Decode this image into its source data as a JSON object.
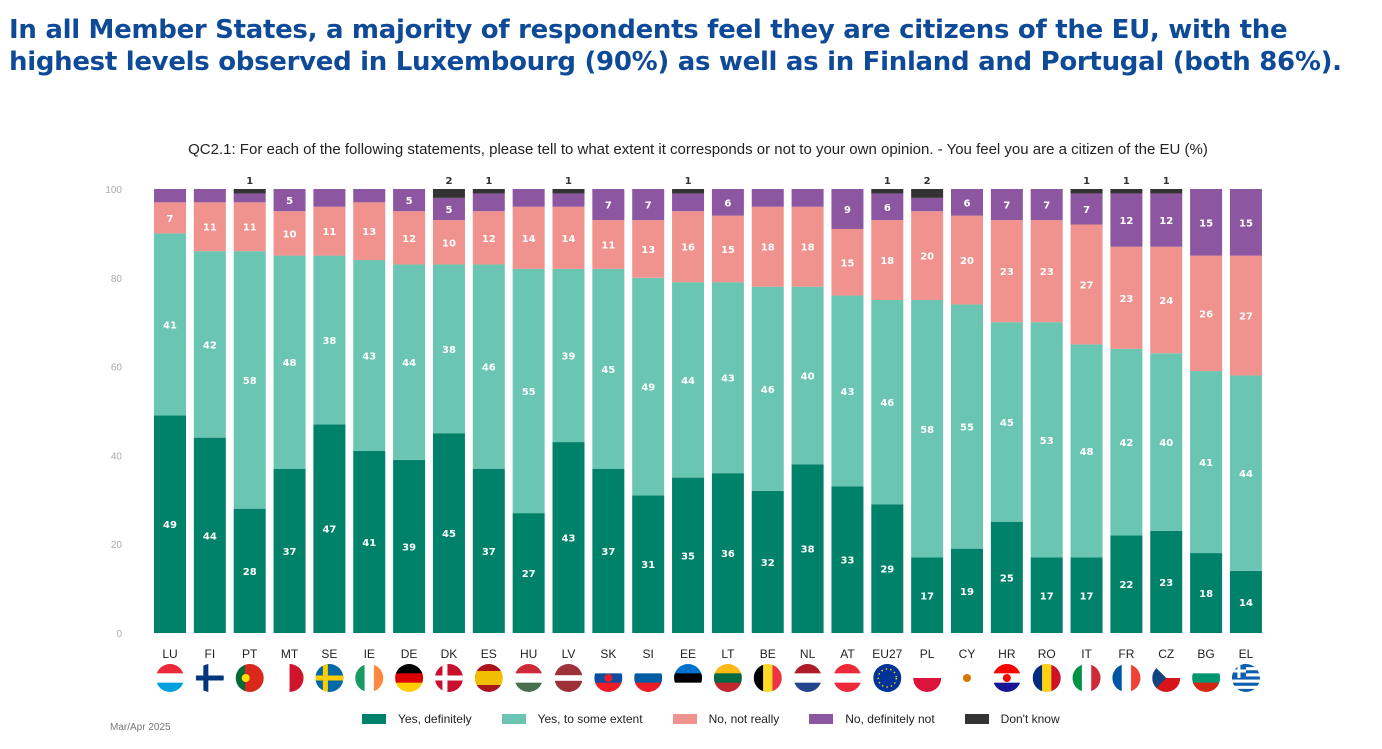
{
  "headline": "In all Member States, a majority of respondents feel they are citizens of the EU, with the highest levels observed in Luxembourg (90%) as well as in Finland and Portugal (both 86%).",
  "footer_date": "Mar/Apr 2025",
  "chart_data": {
    "type": "bar",
    "stacked": true,
    "title": "QC2.1: For each of the following statements, please tell to what extent it corresponds or not to your own opinion. - You feel you are a citizen of the EU (%)",
    "xlabel": "",
    "ylabel": "",
    "ylim": [
      0,
      100
    ],
    "yticks": [
      0,
      20,
      40,
      60,
      80,
      100
    ],
    "grid": false,
    "legend_position": "bottom",
    "categories": [
      "LU",
      "FI",
      "PT",
      "MT",
      "SE",
      "IE",
      "DE",
      "DK",
      "ES",
      "HU",
      "LV",
      "SK",
      "SI",
      "EE",
      "LT",
      "BE",
      "NL",
      "AT",
      "EU27",
      "PL",
      "CY",
      "HR",
      "RO",
      "IT",
      "FR",
      "CZ",
      "BG",
      "EL"
    ],
    "flags": [
      "flag-luxembourg",
      "flag-finland",
      "flag-portugal",
      "flag-malta",
      "flag-sweden",
      "flag-ireland",
      "flag-germany",
      "flag-denmark",
      "flag-spain",
      "flag-hungary",
      "flag-latvia",
      "flag-slovakia",
      "flag-slovenia",
      "flag-estonia",
      "flag-lithuania",
      "flag-belgium",
      "flag-netherlands",
      "flag-austria",
      "flag-eu",
      "flag-poland",
      "flag-cyprus",
      "flag-croatia",
      "flag-romania",
      "flag-italy",
      "flag-france",
      "flag-czechia",
      "flag-bulgaria",
      "flag-greece"
    ],
    "series": [
      {
        "name": "Yes, definitely",
        "color": "#00826a",
        "values": [
          49,
          44,
          28,
          37,
          47,
          41,
          39,
          45,
          37,
          27,
          43,
          37,
          31,
          35,
          36,
          32,
          38,
          33,
          29,
          17,
          19,
          25,
          17,
          17,
          22,
          23,
          18,
          14
        ],
        "labels_shown": [
          true,
          true,
          true,
          true,
          true,
          true,
          true,
          true,
          true,
          true,
          true,
          true,
          true,
          true,
          true,
          true,
          true,
          true,
          true,
          true,
          true,
          true,
          true,
          true,
          true,
          true,
          true,
          true
        ]
      },
      {
        "name": "Yes, to some extent",
        "color": "#6bc5b3",
        "values": [
          41,
          42,
          58,
          48,
          38,
          43,
          44,
          38,
          46,
          55,
          39,
          45,
          49,
          44,
          43,
          46,
          40,
          43,
          46,
          58,
          55,
          45,
          53,
          48,
          42,
          40,
          41,
          44
        ],
        "labels_shown": [
          true,
          true,
          true,
          true,
          true,
          true,
          true,
          true,
          true,
          true,
          true,
          true,
          true,
          true,
          true,
          true,
          true,
          true,
          true,
          true,
          true,
          true,
          true,
          true,
          true,
          true,
          true,
          true
        ]
      },
      {
        "name": "No, not really",
        "color": "#f0928d",
        "values": [
          7,
          11,
          11,
          10,
          11,
          13,
          12,
          10,
          12,
          14,
          14,
          11,
          13,
          16,
          15,
          18,
          18,
          15,
          18,
          20,
          20,
          23,
          23,
          27,
          23,
          24,
          26,
          27
        ],
        "labels_shown": [
          true,
          true,
          true,
          true,
          true,
          true,
          true,
          true,
          true,
          true,
          true,
          true,
          true,
          true,
          true,
          true,
          true,
          true,
          true,
          true,
          true,
          true,
          true,
          true,
          true,
          true,
          true,
          true
        ]
      },
      {
        "name": "No, definitely not",
        "color": "#8d56a1",
        "values": [
          3,
          3,
          2,
          5,
          4,
          3,
          5,
          5,
          4,
          4,
          3,
          7,
          7,
          4,
          6,
          4,
          4,
          9,
          6,
          3,
          6,
          7,
          7,
          7,
          12,
          12,
          15,
          15
        ],
        "labels_shown": [
          false,
          false,
          false,
          true,
          false,
          false,
          true,
          true,
          false,
          false,
          false,
          true,
          true,
          false,
          true,
          false,
          false,
          true,
          true,
          false,
          true,
          true,
          true,
          true,
          true,
          true,
          true,
          true
        ]
      },
      {
        "name": "Don't know",
        "color": "#333333",
        "values": [
          0,
          0,
          1,
          0,
          0,
          0,
          0,
          2,
          1,
          0,
          1,
          0,
          0,
          1,
          0,
          0,
          0,
          0,
          1,
          2,
          0,
          0,
          0,
          1,
          1,
          1,
          0,
          0
        ],
        "labels_shown": [
          false,
          false,
          true,
          false,
          false,
          false,
          false,
          true,
          true,
          false,
          true,
          false,
          false,
          true,
          false,
          false,
          false,
          false,
          true,
          true,
          false,
          false,
          false,
          true,
          true,
          true,
          false,
          false
        ]
      }
    ]
  }
}
